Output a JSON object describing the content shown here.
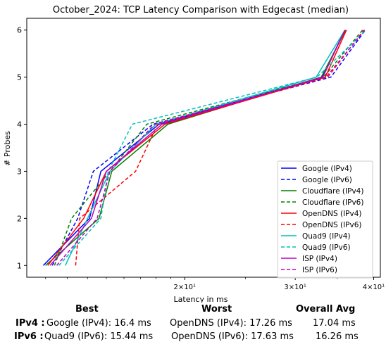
{
  "chart_data": {
    "type": "line",
    "title": "October_2024: TCP Latency Comparison with Edgecast (median)",
    "xlabel": "Latency in ms",
    "ylabel": "# Probes",
    "xscale": "log",
    "xlim": [
      11.2,
      41.0
    ],
    "ylim": [
      0.75,
      6.25
    ],
    "x_ticks": [
      {
        "value": 20,
        "label": "2×10¹"
      },
      {
        "value": 30,
        "label": "3×10¹"
      },
      {
        "value": 40,
        "label": "4×10¹"
      }
    ],
    "y_ticks": [
      1,
      2,
      3,
      4,
      5,
      6
    ],
    "legend_position": "lower-right",
    "grid": false,
    "series": [
      {
        "name": "Google (IPv4)",
        "color": "#0000ff",
        "dash": "solid",
        "points": [
          [
            11.9,
            1
          ],
          [
            14.1,
            2
          ],
          [
            14.7,
            3
          ],
          [
            18.2,
            4
          ],
          [
            33.1,
            5
          ],
          [
            36.0,
            6
          ]
        ]
      },
      {
        "name": "Google (IPv6)",
        "color": "#0000ff",
        "dash": "dashed",
        "points": [
          [
            12.3,
            1
          ],
          [
            13.5,
            2
          ],
          [
            14.3,
            3
          ],
          [
            17.8,
            4
          ],
          [
            34.2,
            5
          ],
          [
            38.8,
            6
          ]
        ]
      },
      {
        "name": "Cloudflare (IPv4)",
        "color": "#008000",
        "dash": "solid",
        "points": [
          [
            12.0,
            1
          ],
          [
            14.6,
            2
          ],
          [
            15.3,
            3
          ],
          [
            18.8,
            4
          ],
          [
            33.0,
            5
          ],
          [
            36.1,
            6
          ]
        ]
      },
      {
        "name": "Cloudflare (IPv6)",
        "color": "#008000",
        "dash": "dashed",
        "points": [
          [
            12.4,
            1
          ],
          [
            13.2,
            2
          ],
          [
            15.2,
            3
          ],
          [
            17.4,
            4
          ],
          [
            33.3,
            5
          ],
          [
            38.4,
            6
          ]
        ]
      },
      {
        "name": "OpenDNS (IPv4)",
        "color": "#ff0000",
        "dash": "solid",
        "points": [
          [
            12.1,
            1
          ],
          [
            13.8,
            2
          ],
          [
            15.0,
            3
          ],
          [
            18.6,
            4
          ],
          [
            33.5,
            5
          ],
          [
            36.2,
            6
          ]
        ]
      },
      {
        "name": "OpenDNS (IPv6)",
        "color": "#ff0000",
        "dash": "dashed",
        "points": [
          [
            13.4,
            1
          ],
          [
            13.6,
            2
          ],
          [
            16.7,
            3
          ],
          [
            18.1,
            4
          ],
          [
            33.8,
            5
          ],
          [
            38.6,
            6
          ]
        ]
      },
      {
        "name": "Quad9 (IPv4)",
        "color": "#00bfbf",
        "dash": "solid",
        "points": [
          [
            12.9,
            1
          ],
          [
            14.0,
            2
          ],
          [
            15.2,
            3
          ],
          [
            18.0,
            4
          ],
          [
            32.4,
            5
          ],
          [
            36.0,
            6
          ]
        ]
      },
      {
        "name": "Quad9 (IPv6)",
        "color": "#00bfbf",
        "dash": "dashed",
        "points": [
          [
            12.6,
            1
          ],
          [
            14.7,
            2
          ],
          [
            15.1,
            3
          ],
          [
            16.5,
            4
          ],
          [
            32.5,
            5
          ],
          [
            38.9,
            6
          ]
        ]
      },
      {
        "name": "ISP (IPv4)",
        "color": "#bf00bf",
        "dash": "solid",
        "points": [
          [
            12.2,
            1
          ],
          [
            14.2,
            2
          ],
          [
            15.0,
            3
          ],
          [
            18.4,
            4
          ],
          [
            33.2,
            5
          ],
          [
            36.0,
            6
          ]
        ]
      },
      {
        "name": "ISP (IPv6)",
        "color": "#bf00bf",
        "dash": "dashed",
        "points": [
          [
            12.5,
            1
          ],
          [
            14.5,
            2
          ],
          [
            15.2,
            3
          ],
          [
            17.9,
            4
          ],
          [
            33.6,
            5
          ],
          [
            38.7,
            6
          ]
        ]
      }
    ]
  },
  "summary": {
    "headers": {
      "best": "Best",
      "worst": "Worst",
      "overall": "Overall Avg"
    },
    "rows": [
      {
        "label": "IPv4 :",
        "best": "Google (IPv4): 16.4 ms",
        "worst": "OpenDNS (IPv4): 17.26 ms",
        "overall": "17.04 ms"
      },
      {
        "label": "IPv6 :",
        "best": "Quad9 (IPv6): 15.44 ms",
        "worst": "OpenDNS (IPv6): 17.63 ms",
        "overall": "16.26 ms"
      }
    ]
  }
}
